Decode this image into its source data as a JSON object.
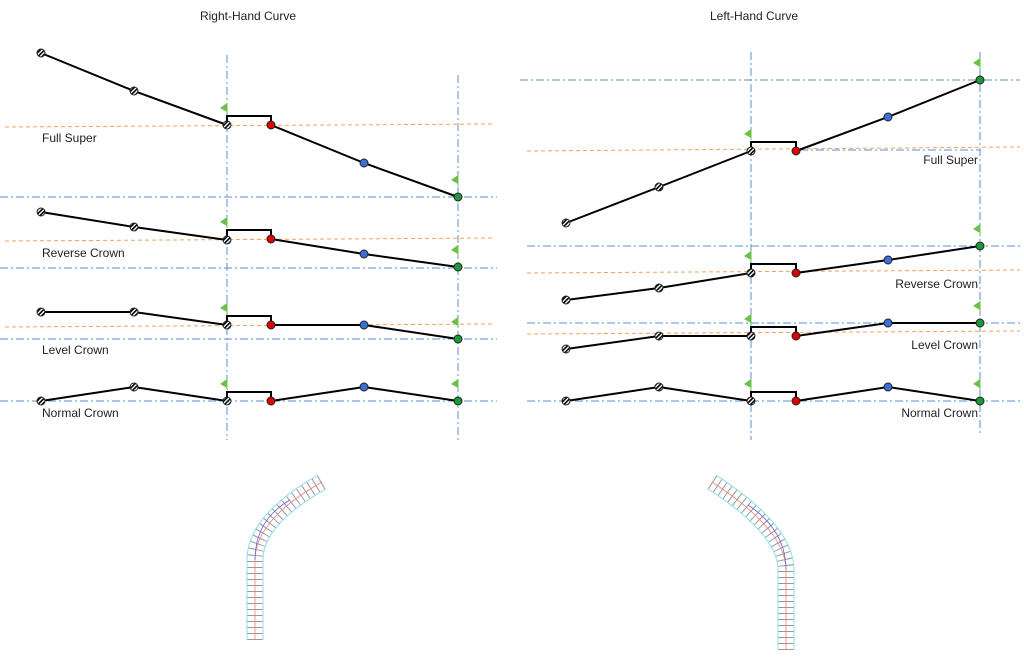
{
  "panels": [
    {
      "title": "Right-Hand Curve",
      "sections": [
        {
          "label": "Full Super"
        },
        {
          "label": "Reverse Crown"
        },
        {
          "label": "Level Crown"
        },
        {
          "label": "Normal Crown"
        }
      ]
    },
    {
      "title": "Left-Hand Curve",
      "sections": [
        {
          "label": "Full Super"
        },
        {
          "label": "Reverse Crown"
        },
        {
          "label": "Level Crown"
        },
        {
          "label": "Normal Crown"
        }
      ]
    }
  ],
  "marker_sequence": [
    "red-hatched",
    "blue-hatched",
    "green-hatched",
    "red",
    "blue",
    "green"
  ],
  "colors": {
    "red": "#e00000",
    "blue": "#3a6fd8",
    "green": "#1a9a3a",
    "flag": "#6cc04a",
    "guide_blue": "#5b8fd0",
    "guide_orange": "#f4a15d",
    "profile": "#000000"
  }
}
